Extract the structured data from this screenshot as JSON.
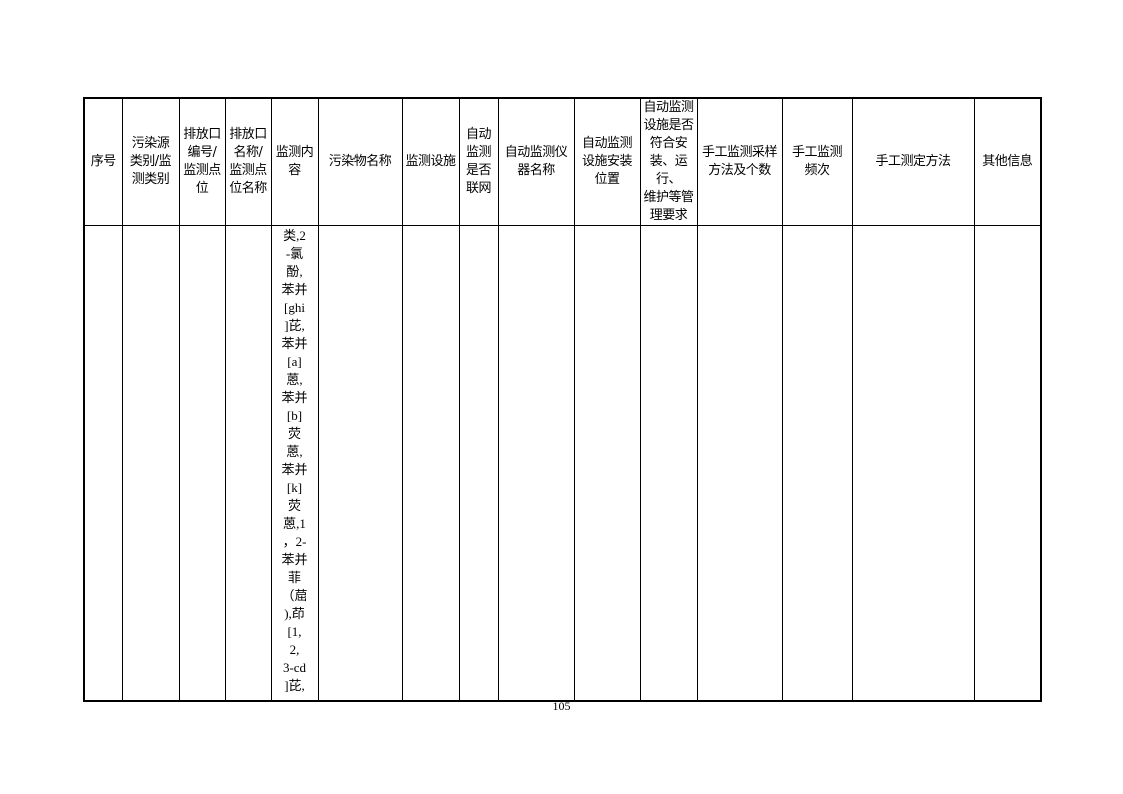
{
  "table": {
    "headers": [
      "序号",
      "污染源\n类别/监\n测类别",
      "排放口\n编号/\n监测点\n位",
      "排放口\n名称/\n监测点\n位名称",
      "监测内\n容",
      "污染物名称",
      "监测设施",
      "自动\n监测\n是否\n联网",
      "自动监测仪\n器名称",
      "自动监测\n设施安装\n位置",
      "自动监测\n设施是否\n符合安\n装、运行、\n维护等管\n理要求",
      "手工监测采样\n方法及个数",
      "手工监测\n频次",
      "手工测定方法",
      "其他信息"
    ],
    "row": {
      "monitoring_content": "类,2\n-氯\n酚,\n苯并\n[ghi\n]芘,\n苯并\n[a]\n蒽,\n苯并\n[b]\n荧\n蒽,\n苯并\n[k]\n荧\n蒽,1\n，2-\n苯并\n菲\n（䓛\n),茚\n[1,\n2,\n3-cd\n]芘,"
    }
  },
  "page_number": "105"
}
